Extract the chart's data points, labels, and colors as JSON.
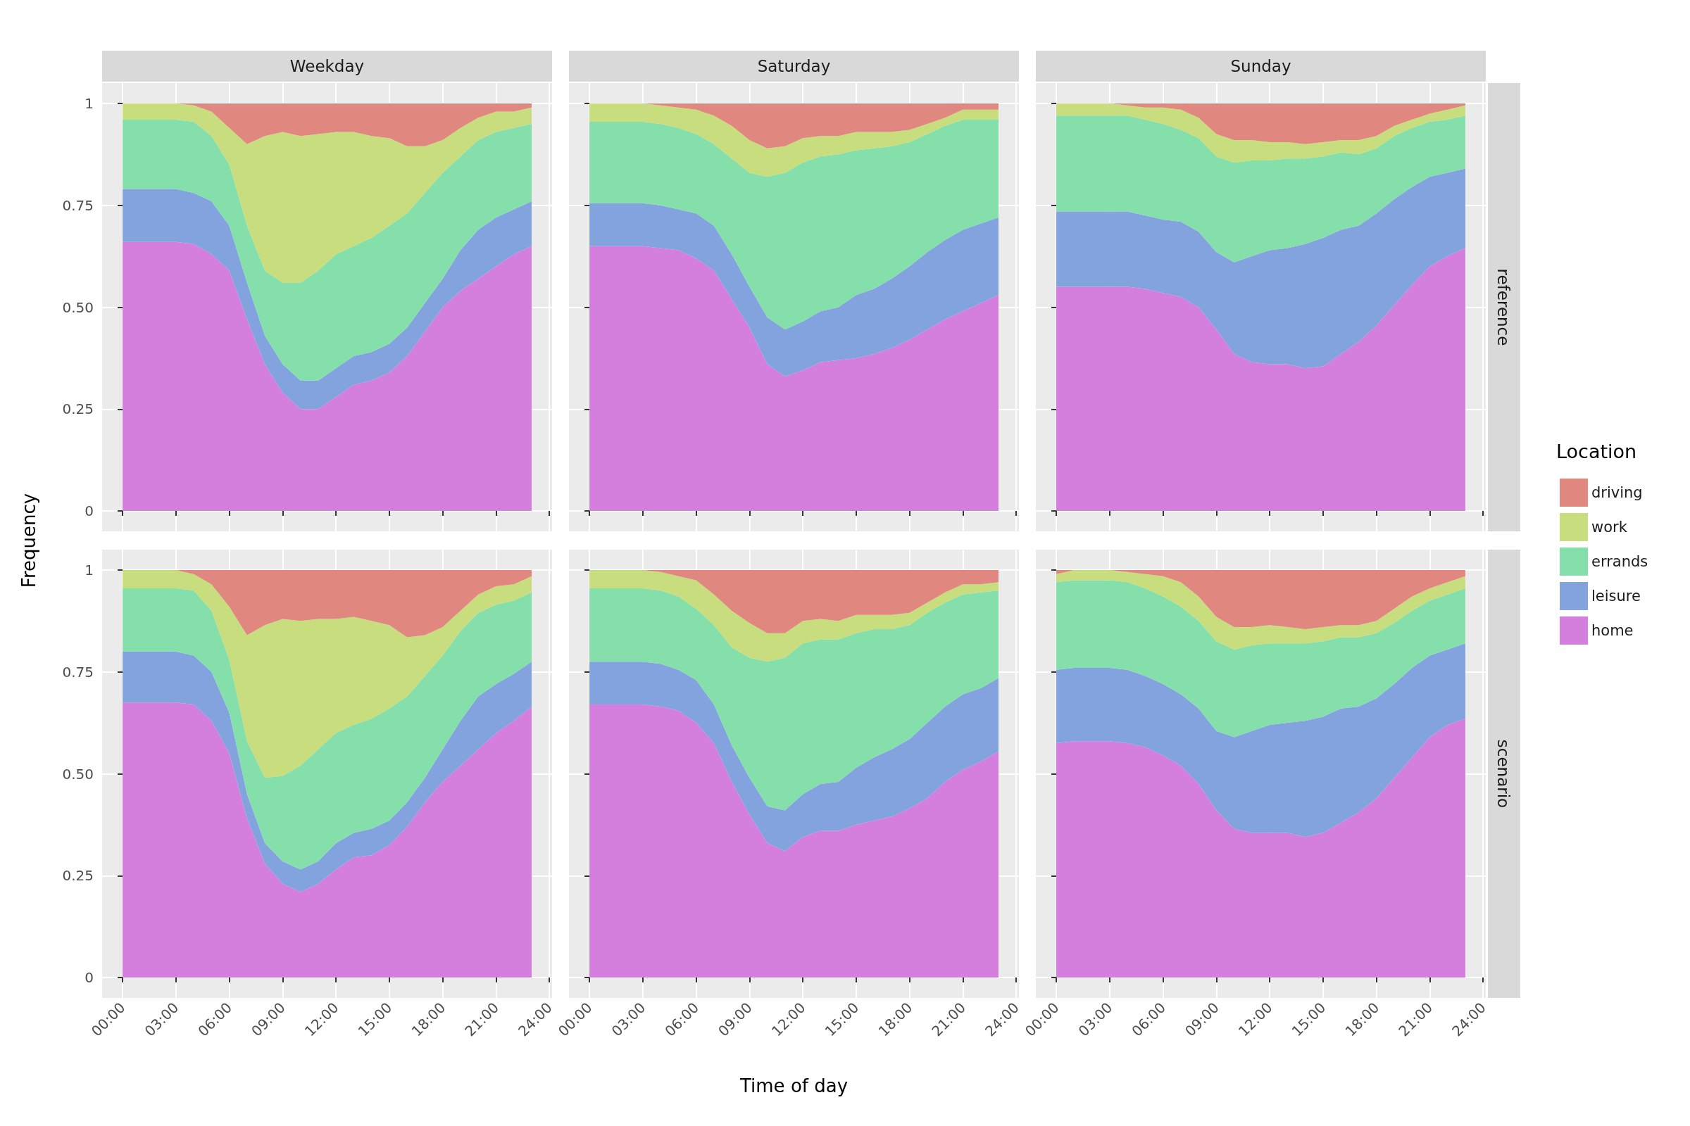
{
  "chart_data": [
    {
      "type": "area",
      "stacked": true,
      "title": "Weekday",
      "ylabel": "Frequency",
      "tick_labels": "y",
      "grid": true,
      "x": [
        0,
        1,
        2,
        3,
        4,
        5,
        6,
        7,
        8,
        9,
        10,
        11,
        12,
        13,
        14,
        15,
        16,
        17,
        18,
        19,
        20,
        21,
        22,
        23
      ],
      "xlim": [
        -1.15,
        24.15
      ],
      "ylim": [
        -0.05,
        1.05
      ],
      "xticks": [
        {
          "value": 0,
          "label": null
        },
        {
          "value": 3,
          "label": null
        },
        {
          "value": 6,
          "label": null
        },
        {
          "value": 9,
          "label": null
        },
        {
          "value": 12,
          "label": null
        },
        {
          "value": 15,
          "label": null
        },
        {
          "value": 18,
          "label": null
        },
        {
          "value": 21,
          "label": null
        },
        {
          "value": 24,
          "label": null
        }
      ],
      "yticks": [
        0,
        0.25,
        {
          "value": 0.5,
          "label": "0.50"
        },
        0.75,
        1
      ],
      "series": [
        {
          "color": "#d47fdd",
          "values": [
            0.66,
            0.66,
            0.66,
            0.66,
            0.655,
            0.63,
            0.59,
            0.47,
            0.36,
            0.29,
            0.25,
            0.25,
            0.28,
            0.31,
            0.32,
            0.34,
            0.38,
            0.44,
            0.5,
            0.54,
            0.57,
            0.6,
            0.63,
            0.65
          ]
        },
        {
          "color": "#83a3df",
          "values": [
            0.13,
            0.13,
            0.13,
            0.13,
            0.125,
            0.13,
            0.11,
            0.09,
            0.07,
            0.07,
            0.07,
            0.07,
            0.07,
            0.07,
            0.07,
            0.07,
            0.07,
            0.07,
            0.07,
            0.1,
            0.12,
            0.12,
            0.11,
            0.11
          ]
        },
        {
          "color": "#84dfab",
          "values": [
            0.17,
            0.17,
            0.17,
            0.17,
            0.175,
            0.16,
            0.15,
            0.14,
            0.16,
            0.2,
            0.24,
            0.27,
            0.28,
            0.27,
            0.28,
            0.29,
            0.28,
            0.27,
            0.26,
            0.23,
            0.22,
            0.21,
            0.2,
            0.19
          ]
        },
        {
          "color": "#c8de7e",
          "values": [
            0.04,
            0.04,
            0.04,
            0.04,
            0.04,
            0.06,
            0.09,
            0.2,
            0.33,
            0.37,
            0.36,
            0.335,
            0.3,
            0.28,
            0.25,
            0.215,
            0.165,
            0.115,
            0.08,
            0.07,
            0.055,
            0.05,
            0.04,
            0.04
          ]
        },
        {
          "color": "#e0887f",
          "values": [
            0,
            0,
            0,
            0,
            0.005,
            0.02,
            0.06,
            0.1,
            0.08,
            0.07,
            0.08,
            0.075,
            0.07,
            0.07,
            0.08,
            0.085,
            0.105,
            0.105,
            0.09,
            0.06,
            0.035,
            0.02,
            0.02,
            0.01
          ]
        }
      ]
    },
    {
      "type": "area",
      "stacked": true,
      "title": "Saturday",
      "tick_labels": false,
      "grid": true,
      "x": [
        0,
        1,
        2,
        3,
        4,
        5,
        6,
        7,
        8,
        9,
        10,
        11,
        12,
        13,
        14,
        15,
        16,
        17,
        18,
        19,
        20,
        21,
        22,
        23
      ],
      "xlim": [
        -1.15,
        24.15
      ],
      "ylim": [
        -0.05,
        1.05
      ],
      "xticks": [
        {
          "value": 0,
          "label": null
        },
        {
          "value": 3,
          "label": null
        },
        {
          "value": 6,
          "label": null
        },
        {
          "value": 9,
          "label": null
        },
        {
          "value": 12,
          "label": null
        },
        {
          "value": 15,
          "label": null
        },
        {
          "value": 18,
          "label": null
        },
        {
          "value": 21,
          "label": null
        },
        {
          "value": 24,
          "label": null
        }
      ],
      "yticks": [
        {
          "value": 0,
          "label": null
        },
        {
          "value": 0.25,
          "label": null
        },
        {
          "value": 0.5,
          "label": null
        },
        {
          "value": 0.75,
          "label": null
        },
        {
          "value": 1,
          "label": null
        }
      ],
      "series": [
        {
          "color": "#d47fdd",
          "values": [
            0.65,
            0.65,
            0.65,
            0.65,
            0.645,
            0.64,
            0.62,
            0.59,
            0.52,
            0.45,
            0.36,
            0.33,
            0.345,
            0.365,
            0.37,
            0.375,
            0.385,
            0.4,
            0.42,
            0.445,
            0.47,
            0.49,
            0.51,
            0.53
          ]
        },
        {
          "color": "#83a3df",
          "values": [
            0.105,
            0.105,
            0.105,
            0.105,
            0.105,
            0.1,
            0.11,
            0.11,
            0.11,
            0.1,
            0.115,
            0.115,
            0.12,
            0.125,
            0.13,
            0.155,
            0.16,
            0.17,
            0.18,
            0.19,
            0.195,
            0.2,
            0.195,
            0.19
          ]
        },
        {
          "color": "#84dfab",
          "values": [
            0.2,
            0.2,
            0.2,
            0.2,
            0.2,
            0.2,
            0.195,
            0.2,
            0.235,
            0.28,
            0.345,
            0.385,
            0.39,
            0.38,
            0.375,
            0.355,
            0.345,
            0.325,
            0.305,
            0.29,
            0.28,
            0.27,
            0.255,
            0.24
          ]
        },
        {
          "color": "#c8de7e",
          "values": [
            0.045,
            0.045,
            0.045,
            0.045,
            0.045,
            0.05,
            0.06,
            0.07,
            0.08,
            0.08,
            0.07,
            0.065,
            0.06,
            0.05,
            0.045,
            0.045,
            0.04,
            0.035,
            0.03,
            0.025,
            0.02,
            0.025,
            0.025,
            0.025
          ]
        },
        {
          "color": "#e0887f",
          "values": [
            0,
            0,
            0,
            0,
            0.005,
            0.01,
            0.015,
            0.03,
            0.055,
            0.09,
            0.11,
            0.105,
            0.085,
            0.08,
            0.08,
            0.07,
            0.07,
            0.07,
            0.065,
            0.05,
            0.035,
            0.015,
            0.015,
            0.015
          ]
        }
      ]
    },
    {
      "type": "area",
      "stacked": true,
      "title": "Sunday",
      "y2label": "reference",
      "legend": "right",
      "legend_title": "Location",
      "tick_labels": false,
      "grid": true,
      "x": [
        0,
        1,
        2,
        3,
        4,
        5,
        6,
        7,
        8,
        9,
        10,
        11,
        12,
        13,
        14,
        15,
        16,
        17,
        18,
        19,
        20,
        21,
        22,
        23
      ],
      "xlim": [
        -1.15,
        24.15
      ],
      "ylim": [
        -0.05,
        1.05
      ],
      "xticks": [
        {
          "value": 0,
          "label": null
        },
        {
          "value": 3,
          "label": null
        },
        {
          "value": 6,
          "label": null
        },
        {
          "value": 9,
          "label": null
        },
        {
          "value": 12,
          "label": null
        },
        {
          "value": 15,
          "label": null
        },
        {
          "value": 18,
          "label": null
        },
        {
          "value": 21,
          "label": null
        },
        {
          "value": 24,
          "label": null
        }
      ],
      "yticks": [
        {
          "value": 0,
          "label": null
        },
        {
          "value": 0.25,
          "label": null
        },
        {
          "value": 0.5,
          "label": null
        },
        {
          "value": 0.75,
          "label": null
        },
        {
          "value": 1,
          "label": null
        }
      ],
      "series": [
        {
          "name": "home",
          "color": "#d47fdd",
          "values": [
            0.55,
            0.55,
            0.55,
            0.55,
            0.55,
            0.545,
            0.535,
            0.525,
            0.5,
            0.445,
            0.385,
            0.365,
            0.36,
            0.36,
            0.35,
            0.355,
            0.385,
            0.415,
            0.455,
            0.505,
            0.555,
            0.6,
            0.625,
            0.645
          ]
        },
        {
          "name": "leisure",
          "color": "#83a3df",
          "values": [
            0.185,
            0.185,
            0.185,
            0.185,
            0.185,
            0.18,
            0.18,
            0.185,
            0.185,
            0.19,
            0.225,
            0.26,
            0.28,
            0.285,
            0.305,
            0.315,
            0.305,
            0.285,
            0.275,
            0.26,
            0.24,
            0.22,
            0.205,
            0.195
          ]
        },
        {
          "name": "errands",
          "color": "#84dfab",
          "values": [
            0.235,
            0.235,
            0.235,
            0.235,
            0.235,
            0.235,
            0.235,
            0.225,
            0.23,
            0.235,
            0.245,
            0.235,
            0.22,
            0.22,
            0.21,
            0.2,
            0.19,
            0.175,
            0.16,
            0.155,
            0.145,
            0.135,
            0.13,
            0.13
          ]
        },
        {
          "name": "work",
          "color": "#c8de7e",
          "values": [
            0.03,
            0.03,
            0.03,
            0.03,
            0.025,
            0.03,
            0.04,
            0.05,
            0.05,
            0.055,
            0.055,
            0.05,
            0.045,
            0.04,
            0.035,
            0.035,
            0.03,
            0.035,
            0.03,
            0.025,
            0.02,
            0.02,
            0.025,
            0.025
          ]
        },
        {
          "name": "driving",
          "color": "#e0887f",
          "values": [
            0,
            0,
            0,
            0,
            0.005,
            0.01,
            0.01,
            0.015,
            0.035,
            0.075,
            0.09,
            0.09,
            0.095,
            0.095,
            0.1,
            0.095,
            0.09,
            0.09,
            0.08,
            0.055,
            0.04,
            0.025,
            0.015,
            0.005
          ]
        }
      ]
    },
    {
      "type": "area",
      "stacked": true,
      "grid": true,
      "x": [
        0,
        1,
        2,
        3,
        4,
        5,
        6,
        7,
        8,
        9,
        10,
        11,
        12,
        13,
        14,
        15,
        16,
        17,
        18,
        19,
        20,
        21,
        22,
        23
      ],
      "xlim": [
        -1.15,
        24.15
      ],
      "ylim": [
        -0.05,
        1.05
      ],
      "xticks": [
        {
          "value": 0,
          "label": "00:00"
        },
        {
          "value": 3,
          "label": "03:00"
        },
        {
          "value": 6,
          "label": "06:00"
        },
        {
          "value": 9,
          "label": "09:00"
        },
        {
          "value": 12,
          "label": "12:00"
        },
        {
          "value": 15,
          "label": "15:00"
        },
        {
          "value": 18,
          "label": "18:00"
        },
        {
          "value": 21,
          "label": "21:00"
        },
        {
          "value": 24,
          "label": "24:00"
        }
      ],
      "yticks": [
        0,
        0.25,
        {
          "value": 0.5,
          "label": "0.50"
        },
        0.75,
        1
      ],
      "series": [
        {
          "color": "#d47fdd",
          "values": [
            0.675,
            0.675,
            0.675,
            0.675,
            0.67,
            0.63,
            0.55,
            0.39,
            0.28,
            0.23,
            0.21,
            0.23,
            0.265,
            0.295,
            0.3,
            0.325,
            0.37,
            0.43,
            0.48,
            0.52,
            0.56,
            0.6,
            0.63,
            0.665
          ]
        },
        {
          "color": "#83a3df",
          "values": [
            0.125,
            0.125,
            0.125,
            0.125,
            0.12,
            0.12,
            0.1,
            0.06,
            0.05,
            0.055,
            0.055,
            0.055,
            0.065,
            0.06,
            0.065,
            0.06,
            0.06,
            0.06,
            0.08,
            0.11,
            0.13,
            0.12,
            0.115,
            0.11
          ]
        },
        {
          "color": "#84dfab",
          "values": [
            0.155,
            0.155,
            0.155,
            0.155,
            0.16,
            0.15,
            0.13,
            0.13,
            0.16,
            0.21,
            0.255,
            0.275,
            0.27,
            0.265,
            0.27,
            0.275,
            0.26,
            0.25,
            0.23,
            0.22,
            0.205,
            0.195,
            0.18,
            0.17
          ]
        },
        {
          "color": "#c8de7e",
          "values": [
            0.045,
            0.045,
            0.045,
            0.045,
            0.04,
            0.065,
            0.13,
            0.26,
            0.375,
            0.385,
            0.355,
            0.32,
            0.28,
            0.265,
            0.24,
            0.205,
            0.145,
            0.1,
            0.07,
            0.05,
            0.045,
            0.045,
            0.04,
            0.04
          ]
        },
        {
          "color": "#e0887f",
          "values": [
            0,
            0,
            0,
            0,
            0.01,
            0.035,
            0.09,
            0.16,
            0.135,
            0.12,
            0.125,
            0.12,
            0.12,
            0.115,
            0.125,
            0.135,
            0.165,
            0.16,
            0.14,
            0.1,
            0.06,
            0.04,
            0.035,
            0.015
          ]
        }
      ]
    },
    {
      "type": "area",
      "stacked": true,
      "xlabel": "Time of day",
      "tick_labels": "x",
      "grid": true,
      "x": [
        0,
        1,
        2,
        3,
        4,
        5,
        6,
        7,
        8,
        9,
        10,
        11,
        12,
        13,
        14,
        15,
        16,
        17,
        18,
        19,
        20,
        21,
        22,
        23
      ],
      "xlim": [
        -1.15,
        24.15
      ],
      "ylim": [
        -0.05,
        1.05
      ],
      "xticks": [
        {
          "value": 0,
          "label": "00:00"
        },
        {
          "value": 3,
          "label": "03:00"
        },
        {
          "value": 6,
          "label": "06:00"
        },
        {
          "value": 9,
          "label": "09:00"
        },
        {
          "value": 12,
          "label": "12:00"
        },
        {
          "value": 15,
          "label": "15:00"
        },
        {
          "value": 18,
          "label": "18:00"
        },
        {
          "value": 21,
          "label": "21:00"
        },
        {
          "value": 24,
          "label": "24:00"
        }
      ],
      "yticks": [
        {
          "value": 0,
          "label": null
        },
        {
          "value": 0.25,
          "label": null
        },
        {
          "value": 0.5,
          "label": null
        },
        {
          "value": 0.75,
          "label": null
        },
        {
          "value": 1,
          "label": null
        }
      ],
      "series": [
        {
          "color": "#d47fdd",
          "values": [
            0.67,
            0.67,
            0.67,
            0.67,
            0.665,
            0.655,
            0.625,
            0.575,
            0.48,
            0.4,
            0.33,
            0.31,
            0.345,
            0.36,
            0.36,
            0.375,
            0.385,
            0.395,
            0.415,
            0.44,
            0.48,
            0.51,
            0.53,
            0.555
          ]
        },
        {
          "color": "#83a3df",
          "values": [
            0.105,
            0.105,
            0.105,
            0.105,
            0.105,
            0.1,
            0.105,
            0.095,
            0.09,
            0.09,
            0.09,
            0.1,
            0.105,
            0.115,
            0.12,
            0.14,
            0.155,
            0.165,
            0.17,
            0.185,
            0.185,
            0.185,
            0.18,
            0.18
          ]
        },
        {
          "color": "#84dfab",
          "values": [
            0.18,
            0.18,
            0.18,
            0.18,
            0.18,
            0.18,
            0.175,
            0.195,
            0.24,
            0.295,
            0.355,
            0.375,
            0.37,
            0.355,
            0.35,
            0.33,
            0.315,
            0.295,
            0.28,
            0.27,
            0.255,
            0.245,
            0.235,
            0.215
          ]
        },
        {
          "color": "#c8de7e",
          "values": [
            0.045,
            0.045,
            0.045,
            0.045,
            0.045,
            0.05,
            0.07,
            0.075,
            0.09,
            0.085,
            0.07,
            0.06,
            0.055,
            0.05,
            0.045,
            0.045,
            0.035,
            0.035,
            0.03,
            0.025,
            0.025,
            0.025,
            0.02,
            0.02
          ]
        },
        {
          "color": "#e0887f",
          "values": [
            0,
            0,
            0,
            0,
            0.005,
            0.015,
            0.025,
            0.06,
            0.1,
            0.13,
            0.155,
            0.155,
            0.125,
            0.12,
            0.125,
            0.11,
            0.11,
            0.11,
            0.105,
            0.08,
            0.055,
            0.035,
            0.035,
            0.03
          ]
        }
      ]
    },
    {
      "type": "area",
      "stacked": true,
      "y2label": "scenario",
      "tick_labels": "x",
      "grid": true,
      "x": [
        0,
        1,
        2,
        3,
        4,
        5,
        6,
        7,
        8,
        9,
        10,
        11,
        12,
        13,
        14,
        15,
        16,
        17,
        18,
        19,
        20,
        21,
        22,
        23
      ],
      "xlim": [
        -1.15,
        24.15
      ],
      "ylim": [
        -0.05,
        1.05
      ],
      "xticks": [
        {
          "value": 0,
          "label": "00:00"
        },
        {
          "value": 3,
          "label": "03:00"
        },
        {
          "value": 6,
          "label": "06:00"
        },
        {
          "value": 9,
          "label": "09:00"
        },
        {
          "value": 12,
          "label": "12:00"
        },
        {
          "value": 15,
          "label": "15:00"
        },
        {
          "value": 18,
          "label": "18:00"
        },
        {
          "value": 21,
          "label": "21:00"
        },
        {
          "value": 24,
          "label": "24:00"
        }
      ],
      "yticks": [
        {
          "value": 0,
          "label": null
        },
        {
          "value": 0.25,
          "label": null
        },
        {
          "value": 0.5,
          "label": null
        },
        {
          "value": 0.75,
          "label": null
        },
        {
          "value": 1,
          "label": null
        }
      ],
      "series": [
        {
          "color": "#d47fdd",
          "values": [
            0.575,
            0.58,
            0.58,
            0.58,
            0.575,
            0.565,
            0.545,
            0.52,
            0.475,
            0.41,
            0.365,
            0.355,
            0.355,
            0.355,
            0.345,
            0.355,
            0.38,
            0.405,
            0.44,
            0.49,
            0.54,
            0.59,
            0.62,
            0.635
          ]
        },
        {
          "color": "#83a3df",
          "values": [
            0.18,
            0.18,
            0.18,
            0.18,
            0.18,
            0.175,
            0.175,
            0.175,
            0.185,
            0.195,
            0.225,
            0.25,
            0.265,
            0.27,
            0.285,
            0.285,
            0.28,
            0.26,
            0.245,
            0.23,
            0.22,
            0.2,
            0.185,
            0.185
          ]
        },
        {
          "color": "#84dfab",
          "values": [
            0.215,
            0.215,
            0.215,
            0.215,
            0.215,
            0.215,
            0.215,
            0.215,
            0.215,
            0.22,
            0.215,
            0.21,
            0.2,
            0.195,
            0.19,
            0.185,
            0.175,
            0.17,
            0.16,
            0.15,
            0.14,
            0.135,
            0.135,
            0.135
          ]
        },
        {
          "color": "#c8de7e",
          "values": [
            0.02,
            0.025,
            0.025,
            0.025,
            0.025,
            0.035,
            0.05,
            0.06,
            0.06,
            0.06,
            0.055,
            0.045,
            0.045,
            0.04,
            0.035,
            0.035,
            0.03,
            0.03,
            0.03,
            0.035,
            0.035,
            0.03,
            0.03,
            0.03
          ]
        },
        {
          "color": "#e0887f",
          "values": [
            0.01,
            0,
            0,
            0,
            0.005,
            0.01,
            0.015,
            0.03,
            0.065,
            0.115,
            0.14,
            0.14,
            0.135,
            0.14,
            0.145,
            0.14,
            0.135,
            0.135,
            0.125,
            0.095,
            0.065,
            0.045,
            0.03,
            0.015
          ]
        }
      ]
    }
  ]
}
